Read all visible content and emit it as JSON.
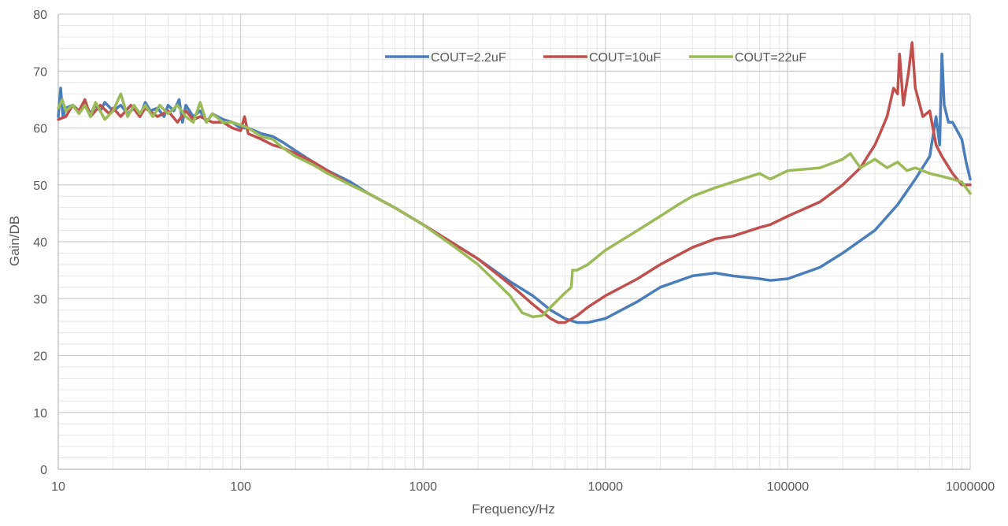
{
  "chart_data": {
    "type": "line",
    "title": "",
    "xlabel": "Frequency/Hz",
    "ylabel": "Gain/DB",
    "xscale": "log",
    "xlim": [
      10,
      1000000
    ],
    "ylim": [
      0,
      80
    ],
    "xticks": [
      "10",
      "100",
      "1000",
      "10000",
      "100000",
      "1000000"
    ],
    "yticks": [
      "0",
      "10",
      "20",
      "30",
      "40",
      "50",
      "60",
      "70",
      "80"
    ],
    "grid": true,
    "legend_position": "top-right",
    "series": [
      {
        "name": "COUT=2.2uF",
        "color": "#4a7ebb",
        "points": [
          [
            10,
            62
          ],
          [
            10.3,
            67
          ],
          [
            10.6,
            62
          ],
          [
            11,
            63.5
          ],
          [
            12,
            64
          ],
          [
            13,
            63
          ],
          [
            14,
            64.5
          ],
          [
            15,
            62.5
          ],
          [
            16,
            64
          ],
          [
            17,
            63
          ],
          [
            18,
            64.5
          ],
          [
            20,
            63
          ],
          [
            22,
            64
          ],
          [
            24,
            62.5
          ],
          [
            26,
            63.5
          ],
          [
            28,
            62
          ],
          [
            30,
            64.5
          ],
          [
            32,
            63
          ],
          [
            35,
            63.5
          ],
          [
            38,
            62
          ],
          [
            40,
            64
          ],
          [
            43,
            63
          ],
          [
            46,
            65
          ],
          [
            48,
            61
          ],
          [
            50,
            64
          ],
          [
            55,
            62
          ],
          [
            60,
            63
          ],
          [
            65,
            61
          ],
          [
            70,
            62.5
          ],
          [
            80,
            61.5
          ],
          [
            90,
            61
          ],
          [
            100,
            60
          ],
          [
            110,
            60
          ],
          [
            130,
            59
          ],
          [
            150,
            58.5
          ],
          [
            170,
            57.5
          ],
          [
            200,
            56
          ],
          [
            250,
            54
          ],
          [
            300,
            52.5
          ],
          [
            400,
            50.5
          ],
          [
            500,
            48.5
          ],
          [
            700,
            46
          ],
          [
            1000,
            43
          ],
          [
            1500,
            39.5
          ],
          [
            2000,
            37
          ],
          [
            3000,
            33
          ],
          [
            4000,
            30.5
          ],
          [
            5000,
            28
          ],
          [
            6000,
            26.5
          ],
          [
            7000,
            25.8
          ],
          [
            8000,
            25.8
          ],
          [
            10000,
            26.5
          ],
          [
            15000,
            29.5
          ],
          [
            20000,
            32
          ],
          [
            30000,
            34
          ],
          [
            40000,
            34.5
          ],
          [
            50000,
            34
          ],
          [
            70000,
            33.5
          ],
          [
            80000,
            33.2
          ],
          [
            100000,
            33.5
          ],
          [
            150000,
            35.5
          ],
          [
            200000,
            38
          ],
          [
            300000,
            42
          ],
          [
            400000,
            46.5
          ],
          [
            500000,
            51
          ],
          [
            600000,
            55
          ],
          [
            650000,
            62
          ],
          [
            680000,
            57
          ],
          [
            700000,
            73
          ],
          [
            720000,
            64
          ],
          [
            760000,
            61
          ],
          [
            800000,
            61
          ],
          [
            900000,
            58
          ],
          [
            950000,
            54
          ],
          [
            1000000,
            51
          ]
        ]
      },
      {
        "name": "COUT=10uF",
        "color": "#c0504d",
        "points": [
          [
            10,
            61.5
          ],
          [
            11,
            62
          ],
          [
            12,
            64
          ],
          [
            13,
            63
          ],
          [
            14,
            65
          ],
          [
            15,
            62
          ],
          [
            17,
            64
          ],
          [
            19,
            62.5
          ],
          [
            20,
            63.5
          ],
          [
            22,
            62
          ],
          [
            25,
            64
          ],
          [
            28,
            62
          ],
          [
            30,
            63.5
          ],
          [
            35,
            62
          ],
          [
            40,
            63
          ],
          [
            45,
            61
          ],
          [
            50,
            63
          ],
          [
            55,
            61.5
          ],
          [
            60,
            62
          ],
          [
            70,
            61
          ],
          [
            80,
            61
          ],
          [
            90,
            60
          ],
          [
            100,
            59.5
          ],
          [
            105,
            62
          ],
          [
            110,
            59
          ],
          [
            130,
            58
          ],
          [
            150,
            57
          ],
          [
            170,
            56.5
          ],
          [
            200,
            55.5
          ],
          [
            250,
            54
          ],
          [
            300,
            52.5
          ],
          [
            400,
            50
          ],
          [
            500,
            48.5
          ],
          [
            700,
            46
          ],
          [
            1000,
            43
          ],
          [
            1500,
            39.5
          ],
          [
            2000,
            37
          ],
          [
            3000,
            32.5
          ],
          [
            4000,
            29
          ],
          [
            5000,
            26.5
          ],
          [
            5500,
            25.8
          ],
          [
            6000,
            25.8
          ],
          [
            7000,
            27
          ],
          [
            8000,
            28.5
          ],
          [
            10000,
            30.5
          ],
          [
            15000,
            33.5
          ],
          [
            20000,
            36
          ],
          [
            30000,
            39
          ],
          [
            40000,
            40.5
          ],
          [
            50000,
            41
          ],
          [
            70000,
            42.5
          ],
          [
            80000,
            43
          ],
          [
            100000,
            44.5
          ],
          [
            150000,
            47
          ],
          [
            200000,
            50
          ],
          [
            250000,
            53
          ],
          [
            300000,
            57
          ],
          [
            320000,
            59
          ],
          [
            350000,
            62
          ],
          [
            380000,
            67
          ],
          [
            400000,
            66
          ],
          [
            410000,
            73
          ],
          [
            430000,
            64
          ],
          [
            460000,
            70
          ],
          [
            480000,
            75
          ],
          [
            500000,
            67
          ],
          [
            550000,
            62
          ],
          [
            600000,
            63
          ],
          [
            650000,
            57
          ],
          [
            700000,
            55
          ],
          [
            800000,
            52
          ],
          [
            900000,
            50
          ],
          [
            1000000,
            50
          ]
        ]
      },
      {
        "name": "COUT=22uF",
        "color": "#9bbb59",
        "points": [
          [
            10,
            63.5
          ],
          [
            10.5,
            65
          ],
          [
            11,
            63
          ],
          [
            12,
            64
          ],
          [
            13,
            62.5
          ],
          [
            14,
            64
          ],
          [
            15,
            62
          ],
          [
            16,
            64.5
          ],
          [
            18,
            61.5
          ],
          [
            20,
            63
          ],
          [
            22,
            66
          ],
          [
            24,
            62
          ],
          [
            26,
            64
          ],
          [
            28,
            62.5
          ],
          [
            30,
            64
          ],
          [
            33,
            62
          ],
          [
            36,
            64
          ],
          [
            40,
            62.5
          ],
          [
            45,
            64
          ],
          [
            50,
            62
          ],
          [
            55,
            61
          ],
          [
            60,
            64.5
          ],
          [
            65,
            61
          ],
          [
            70,
            62.5
          ],
          [
            80,
            61
          ],
          [
            90,
            61
          ],
          [
            100,
            60.5
          ],
          [
            110,
            60
          ],
          [
            130,
            58.5
          ],
          [
            150,
            58
          ],
          [
            170,
            56.5
          ],
          [
            200,
            55
          ],
          [
            250,
            53.5
          ],
          [
            300,
            52
          ],
          [
            400,
            50
          ],
          [
            500,
            48.5
          ],
          [
            700,
            46
          ],
          [
            1000,
            43
          ],
          [
            1500,
            39
          ],
          [
            2000,
            36
          ],
          [
            2500,
            33
          ],
          [
            3000,
            30.5
          ],
          [
            3500,
            27.5
          ],
          [
            4000,
            26.8
          ],
          [
            4500,
            27
          ],
          [
            5000,
            28.5
          ],
          [
            6000,
            31
          ],
          [
            6500,
            32
          ],
          [
            6600,
            35
          ],
          [
            7000,
            35
          ],
          [
            8000,
            36
          ],
          [
            10000,
            38.5
          ],
          [
            15000,
            42
          ],
          [
            20000,
            44.5
          ],
          [
            25000,
            46.5
          ],
          [
            30000,
            48
          ],
          [
            40000,
            49.5
          ],
          [
            50000,
            50.5
          ],
          [
            70000,
            52
          ],
          [
            80000,
            51
          ],
          [
            100000,
            52.5
          ],
          [
            150000,
            53
          ],
          [
            200000,
            54.5
          ],
          [
            220000,
            55.5
          ],
          [
            250000,
            53
          ],
          [
            300000,
            54.5
          ],
          [
            350000,
            53
          ],
          [
            400000,
            54
          ],
          [
            450000,
            52.5
          ],
          [
            500000,
            53
          ],
          [
            600000,
            52
          ],
          [
            700000,
            51.5
          ],
          [
            800000,
            51
          ],
          [
            900000,
            50.5
          ],
          [
            1000000,
            48.5
          ]
        ]
      }
    ]
  }
}
